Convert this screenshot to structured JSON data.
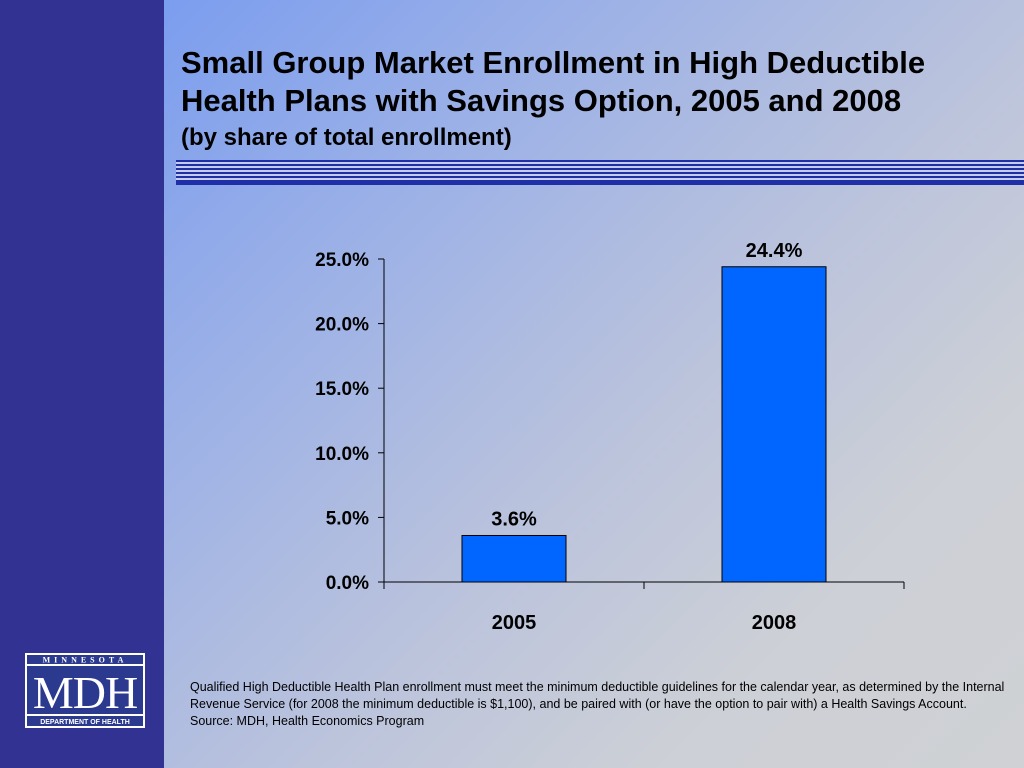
{
  "slide": {
    "title": "Small Group Market Enrollment in High Deductible Health Plans with Savings Option, 2005 and 2008",
    "subtitle": "(by share of total enrollment)",
    "footnote": "Qualified High Deductible Health Plan enrollment must meet the minimum deductible guidelines for the calendar year, as determined by the Internal Revenue Service (for 2008 the minimum deductible is $1,100), and be paired with (or have the option to pair with) a Health Savings Account.",
    "source": "Source: MDH, Health Economics Program",
    "logo": {
      "top_text": "MINNESOTA",
      "main_text": "MDH",
      "bottom_text": "DEPARTMENT OF HEALTH"
    }
  },
  "colors": {
    "sidebar": "#323292",
    "bar_fill": "#0066ff",
    "rule": "#1f2fa8"
  },
  "chart_data": {
    "type": "bar",
    "categories": [
      "2005",
      "2008"
    ],
    "values": [
      3.6,
      24.4
    ],
    "data_labels": [
      "3.6%",
      "24.4%"
    ],
    "ylim": [
      0,
      25
    ],
    "yticks": [
      0,
      5,
      10,
      15,
      20,
      25
    ],
    "ytick_labels": [
      "0.0%",
      "5.0%",
      "10.0%",
      "15.0%",
      "20.0%",
      "25.0%"
    ],
    "xlabel": "",
    "ylabel": "",
    "grid": false,
    "legend": "none"
  }
}
